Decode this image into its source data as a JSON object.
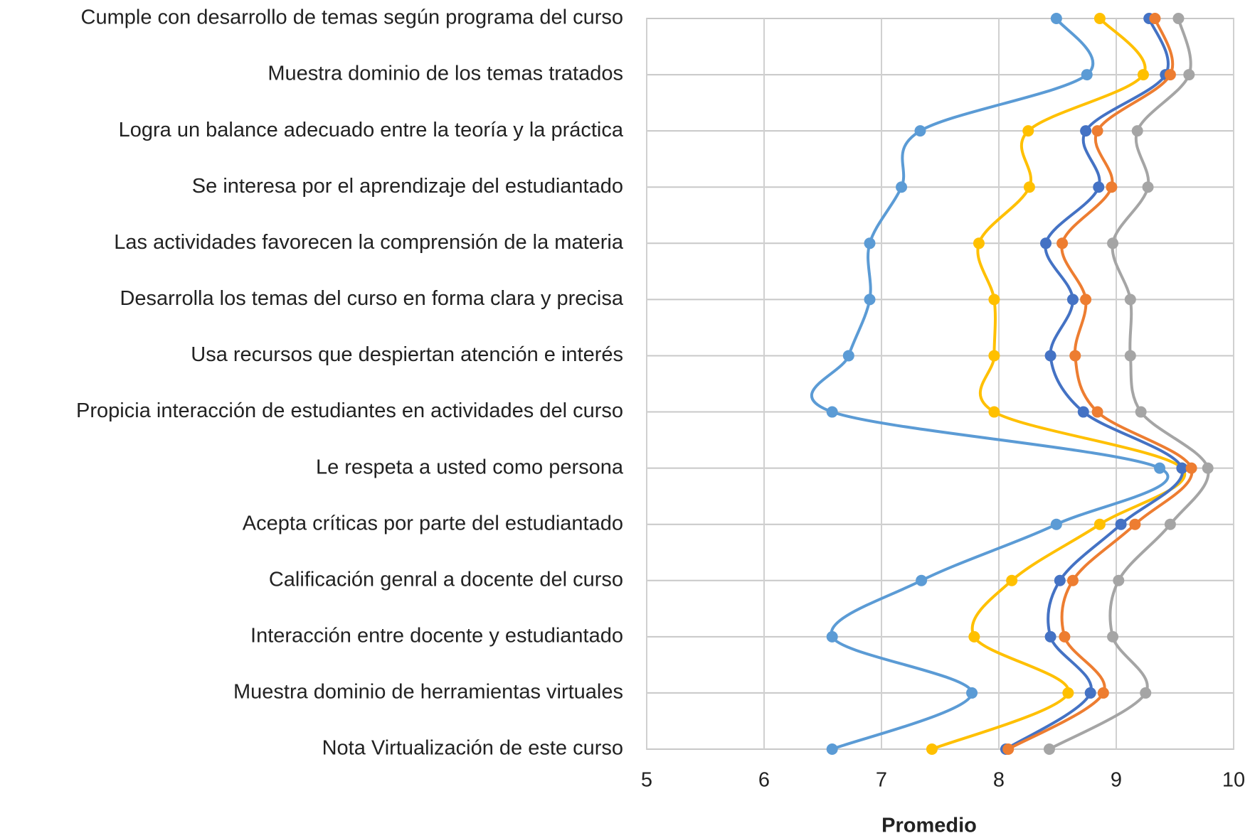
{
  "chart_data": {
    "type": "line",
    "x_label": "Promedio",
    "categories": [
      "Cumple con desarrollo de temas según programa del curso",
      "Muestra dominio de los temas tratados",
      "Logra un balance adecuado entre la teoría y la práctica",
      "Se interesa por el aprendizaje del estudiantado",
      "Las actividades favorecen la comprensión de la materia",
      "Desarrolla los temas del curso en forma clara y precisa",
      "Usa recursos que despiertan atención e interés",
      "Propicia interacción de estudiantes en actividades del curso",
      "Le respeta a usted como persona",
      "Acepta críticas por parte del estudiantado",
      "Calificación genral a docente del curso",
      "Interacción entre docente y estudiantado",
      "Muestra dominio de herramientas virtuales",
      "Nota Virtualización de este curso"
    ],
    "series": [
      {
        "color": "#5b9bd5",
        "values": [
          8.49,
          8.75,
          7.33,
          7.17,
          6.9,
          6.9,
          6.72,
          6.58,
          9.37,
          8.49,
          7.34,
          6.58,
          7.77,
          6.58
        ]
      },
      {
        "color": "#ffc000",
        "values": [
          8.86,
          9.23,
          8.25,
          8.26,
          7.83,
          7.96,
          7.96,
          7.96,
          9.56,
          8.86,
          8.11,
          7.79,
          8.59,
          7.43
        ]
      },
      {
        "color": "#4472c4",
        "values": [
          9.28,
          9.42,
          8.74,
          8.85,
          8.4,
          8.63,
          8.44,
          8.72,
          9.56,
          9.04,
          8.52,
          8.44,
          8.78,
          8.06
        ]
      },
      {
        "color": "#ed7d31",
        "values": [
          9.33,
          9.46,
          8.84,
          8.96,
          8.54,
          8.74,
          8.65,
          8.84,
          9.64,
          9.16,
          8.63,
          8.56,
          8.89,
          8.08
        ]
      },
      {
        "color": "#a5a5a5",
        "values": [
          9.53,
          9.62,
          9.18,
          9.27,
          8.97,
          9.12,
          9.12,
          9.21,
          9.78,
          9.46,
          9.02,
          8.97,
          9.25,
          8.43
        ]
      }
    ],
    "xlim": [
      5,
      10
    ],
    "xticks": [
      5,
      6,
      7,
      8,
      9,
      10
    ],
    "grid": true,
    "smooth": true
  }
}
